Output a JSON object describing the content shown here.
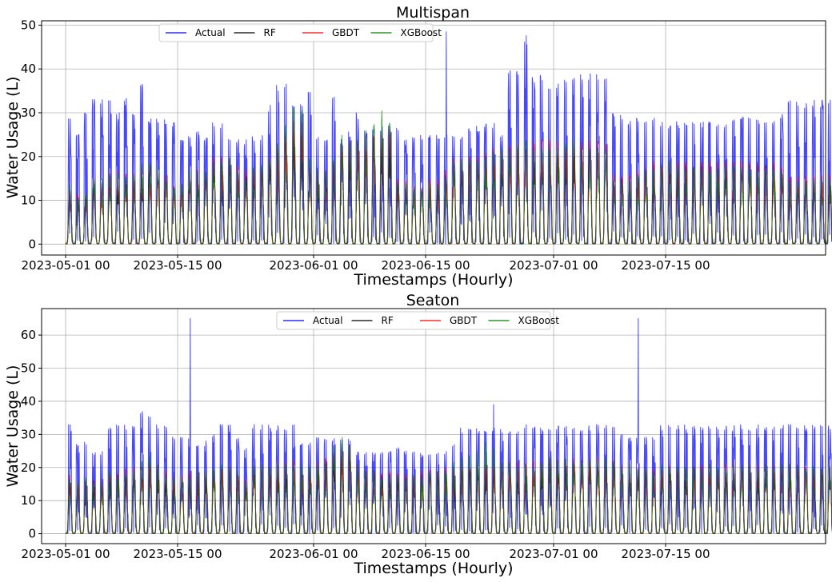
{
  "chart_data": [
    {
      "type": "line",
      "title": "Multispan",
      "xlabel": "Timestamps (Hourly)",
      "ylabel": "Water Usage (L)",
      "ylim": [
        -2.5,
        51
      ],
      "yticks": [
        0,
        10,
        20,
        30,
        40,
        50
      ],
      "x_range": [
        "2023-04-28",
        "2023-08-04"
      ],
      "x_data_range": [
        "2023-05-01 00",
        "2023-07-31 23"
      ],
      "xticks": [
        {
          "date": "2023-05-01",
          "label": "2023-05-01 00"
        },
        {
          "date": "2023-05-15",
          "label": "2023-05-15 00"
        },
        {
          "date": "2023-06-01",
          "label": "2023-06-01 00"
        },
        {
          "date": "2023-06-15",
          "label": "2023-06-15 00"
        },
        {
          "date": "2023-07-01",
          "label": "2023-07-01 00"
        },
        {
          "date": "2023-07-15",
          "label": "2023-07-15 00"
        }
      ],
      "grid": true,
      "legend_position": "top",
      "series": [
        {
          "name": "Actual",
          "color": "#0000ff",
          "daily_peaks": [
            30,
            25,
            30,
            34,
            34,
            34,
            30,
            34,
            30,
            38,
            29,
            29,
            29,
            28,
            24,
            25,
            26,
            25,
            28,
            28,
            24,
            24,
            24,
            25,
            25,
            32,
            37,
            37,
            32,
            32,
            35,
            25,
            25,
            35,
            24,
            26,
            30,
            27,
            27,
            27,
            27,
            27,
            25,
            25,
            25,
            25,
            25,
            25,
            25,
            25,
            27,
            27,
            28,
            28,
            26,
            40,
            40,
            48,
            39,
            39,
            37,
            37,
            38,
            39,
            39,
            39,
            39,
            39,
            30,
            30,
            29,
            29,
            29,
            29,
            28,
            28,
            28,
            28,
            28,
            28,
            28,
            28,
            28,
            29,
            29,
            29,
            29,
            29,
            29,
            30,
            33,
            33,
            33,
            33,
            33,
            33,
            33
          ],
          "spikes": [
            {
              "date": "2023-06-17 14",
              "y": 48.5
            }
          ]
        },
        {
          "name": "RF",
          "color": "#000000",
          "daily_peaks": [
            12,
            11,
            11,
            14,
            13,
            14,
            14,
            15,
            15,
            17,
            19,
            17,
            15,
            13,
            13,
            16,
            15,
            16,
            19,
            19,
            19,
            17,
            16,
            17,
            17,
            19,
            21,
            24,
            26,
            26,
            18,
            16,
            16,
            19,
            22,
            22,
            22,
            23,
            25,
            25,
            25,
            14,
            14,
            13,
            13,
            14,
            14,
            16,
            18,
            19,
            19,
            19,
            20,
            21,
            22,
            22,
            22,
            22,
            22,
            22,
            22,
            22,
            22,
            22,
            22,
            22,
            22,
            22,
            15,
            15,
            15,
            16,
            17,
            18,
            18,
            18,
            18,
            18,
            18,
            18,
            18,
            18,
            18,
            18,
            18,
            18,
            18,
            18,
            18,
            17,
            15,
            15,
            15,
            15,
            15,
            15,
            15
          ]
        },
        {
          "name": "GBDT",
          "color": "#ff0000",
          "daily_peaks": [
            13,
            12,
            12,
            15,
            14,
            17,
            17,
            17,
            17,
            18,
            18,
            17,
            16,
            14,
            14,
            17,
            18,
            17,
            20,
            20,
            20,
            18,
            17,
            18,
            18,
            20,
            22,
            25,
            30,
            30,
            19,
            17,
            17,
            20,
            24,
            24,
            24,
            25,
            27,
            27,
            27,
            15,
            15,
            14,
            14,
            15,
            15,
            17,
            20,
            20,
            20,
            20,
            21,
            22,
            23,
            23,
            23,
            23,
            24,
            24,
            24,
            24,
            24,
            24,
            24,
            24,
            24,
            24,
            16,
            16,
            16,
            17,
            18,
            19,
            19,
            19,
            19,
            19,
            19,
            19,
            19,
            19,
            19,
            19,
            19,
            19,
            19,
            19,
            19,
            18,
            16,
            16,
            16,
            16,
            16,
            16,
            16
          ]
        },
        {
          "name": "XGBoost",
          "color": "#008000",
          "daily_peaks": [
            14,
            11,
            12,
            16,
            15,
            16,
            16,
            16,
            16,
            19,
            20,
            18,
            16,
            14,
            14,
            17,
            17,
            17,
            19,
            20,
            20,
            17,
            16,
            18,
            18,
            21,
            24,
            28,
            32,
            32,
            20,
            17,
            17,
            20,
            25,
            25,
            25,
            26,
            28,
            31,
            29,
            14,
            14,
            13,
            13,
            14,
            14,
            16,
            19,
            20,
            20,
            20,
            20,
            22,
            22,
            22,
            24,
            24,
            22,
            22,
            22,
            22,
            24,
            24,
            22,
            22,
            22,
            22,
            15,
            15,
            15,
            16,
            17,
            18,
            18,
            20,
            18,
            18,
            18,
            18,
            18,
            18,
            18,
            18,
            18,
            18,
            18,
            18,
            18,
            17,
            15,
            15,
            15,
            15,
            15,
            15,
            15
          ]
        }
      ]
    },
    {
      "type": "line",
      "title": "Seaton",
      "xlabel": "Timestamps (Hourly)",
      "ylabel": "Water Usage (L)",
      "ylim": [
        -3,
        68
      ],
      "yticks": [
        0,
        10,
        20,
        30,
        40,
        50,
        60
      ],
      "x_range": [
        "2023-04-28",
        "2023-08-04"
      ],
      "x_data_range": [
        "2023-05-01 00",
        "2023-07-31 23"
      ],
      "xticks": [
        {
          "date": "2023-05-01",
          "label": "2023-05-01 00"
        },
        {
          "date": "2023-05-15",
          "label": "2023-05-15 00"
        },
        {
          "date": "2023-06-01",
          "label": "2023-06-01 00"
        },
        {
          "date": "2023-06-15",
          "label": "2023-06-15 00"
        },
        {
          "date": "2023-07-01",
          "label": "2023-07-01 00"
        },
        {
          "date": "2023-07-15",
          "label": "2023-07-15 00"
        }
      ],
      "grid": true,
      "legend_position": "top",
      "series": [
        {
          "name": "Actual",
          "color": "#0000ff",
          "daily_peaks": [
            33,
            27,
            28,
            25,
            25,
            33,
            33,
            33,
            33,
            37,
            37,
            33,
            33,
            30,
            30,
            30,
            28,
            28,
            30,
            33,
            33,
            30,
            26,
            33,
            33,
            33,
            33,
            33,
            33,
            28,
            28,
            29,
            29,
            29,
            29,
            29,
            25,
            25,
            25,
            25,
            25,
            26,
            25,
            25,
            25,
            25,
            25,
            25,
            28,
            32,
            32,
            32,
            32,
            32,
            32,
            32,
            32,
            33,
            33,
            33,
            33,
            33,
            33,
            33,
            33,
            33,
            33,
            33,
            33,
            30,
            30,
            30,
            30,
            30,
            33,
            33,
            33,
            33,
            33,
            33,
            33,
            33,
            33,
            33,
            33,
            33,
            33,
            33,
            33,
            33,
            33,
            33,
            33,
            33,
            33,
            33,
            33
          ],
          "spikes": [
            {
              "date": "2023-05-16 14",
              "y": 65
            },
            {
              "date": "2023-07-11 14",
              "y": 65
            },
            {
              "date": "2023-06-23 12",
              "y": 39
            }
          ]
        },
        {
          "name": "RF",
          "color": "#000000",
          "daily_peaks": [
            17,
            15,
            17,
            16,
            15,
            18,
            18,
            18,
            18,
            21,
            22,
            20,
            18,
            17,
            17,
            18,
            18,
            18,
            19,
            20,
            20,
            18,
            16,
            20,
            20,
            20,
            20,
            20,
            20,
            19,
            19,
            22,
            22,
            25,
            25,
            25,
            20,
            19,
            19,
            18,
            18,
            18,
            18,
            18,
            18,
            19,
            19,
            19,
            19,
            20,
            20,
            20,
            20,
            20,
            20,
            20,
            20,
            20,
            20,
            21,
            22,
            22,
            22,
            22,
            22,
            22,
            22,
            22,
            22,
            20,
            20,
            19,
            19,
            19,
            20,
            20,
            20,
            20,
            20,
            20,
            20,
            20,
            20,
            20,
            20,
            20,
            20,
            20,
            20,
            20,
            20,
            20,
            20,
            20,
            20,
            20,
            20
          ]
        },
        {
          "name": "GBDT",
          "color": "#ff0000",
          "daily_peaks": [
            18,
            16,
            17,
            16,
            16,
            19,
            19,
            20,
            20,
            22,
            23,
            21,
            19,
            18,
            18,
            19,
            19,
            19,
            20,
            21,
            21,
            19,
            17,
            21,
            21,
            21,
            22,
            22,
            22,
            20,
            20,
            23,
            23,
            26,
            27,
            27,
            21,
            20,
            20,
            19,
            19,
            19,
            19,
            19,
            19,
            20,
            20,
            20,
            20,
            21,
            21,
            21,
            21,
            21,
            22,
            22,
            22,
            22,
            22,
            22,
            23,
            23,
            23,
            23,
            23,
            23,
            23,
            23,
            23,
            21,
            21,
            20,
            20,
            20,
            21,
            21,
            21,
            21,
            21,
            21,
            21,
            21,
            21,
            21,
            21,
            21,
            21,
            21,
            21,
            21,
            21,
            21,
            21,
            21,
            21,
            21,
            21
          ]
        },
        {
          "name": "XGBoost",
          "color": "#008000",
          "daily_peaks": [
            17,
            17,
            17,
            16,
            16,
            19,
            18,
            19,
            19,
            22,
            24,
            21,
            18,
            17,
            17,
            18,
            19,
            19,
            20,
            21,
            21,
            19,
            16,
            21,
            21,
            21,
            21,
            21,
            21,
            21,
            21,
            22,
            22,
            28,
            30,
            28,
            21,
            19,
            19,
            18,
            18,
            18,
            18,
            18,
            18,
            19,
            19,
            20,
            22,
            23,
            24,
            26,
            28,
            26,
            22,
            22,
            21,
            21,
            21,
            22,
            23,
            23,
            23,
            23,
            23,
            23,
            23,
            23,
            23,
            21,
            21,
            20,
            20,
            20,
            21,
            21,
            21,
            21,
            21,
            21,
            21,
            21,
            21,
            21,
            21,
            21,
            21,
            21,
            21,
            21,
            21,
            21,
            21,
            21,
            21,
            21,
            21
          ]
        }
      ]
    }
  ]
}
